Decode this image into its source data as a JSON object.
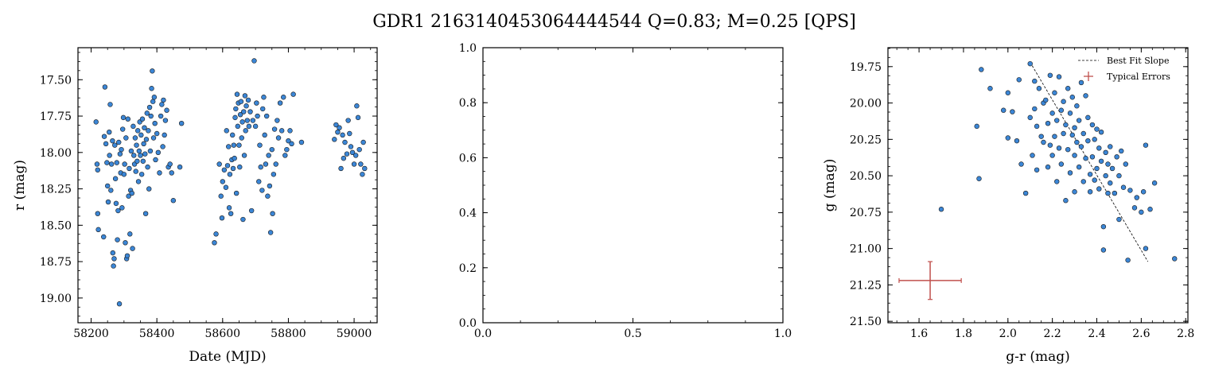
{
  "figure": {
    "title": "GDR1 2163140453064444544  Q=0.83; M=0.25 [QPS]"
  },
  "colors": {
    "point_fill": "#3b86d6",
    "point_edge": "#1a1a1a",
    "error_bar": "#c0504d",
    "fit_line": "#000000"
  },
  "chart_data": [
    {
      "type": "scatter",
      "name": "light-curve",
      "xlabel": "Date (MJD)",
      "ylabel": "r (mag)",
      "xlim": [
        58160,
        59070
      ],
      "ylim": [
        19.17,
        17.28
      ],
      "y_inverted": true,
      "xticks": [
        58200,
        58400,
        58600,
        58800,
        59000
      ],
      "xtick_labels": [
        "58200",
        "58400",
        "58600",
        "58800",
        "59000"
      ],
      "yticks": [
        17.5,
        17.75,
        18.0,
        18.25,
        18.5,
        18.75,
        19.0
      ],
      "ytick_labels": [
        "17.50",
        "17.75",
        "18.00",
        "18.25",
        "18.50",
        "18.75",
        "19.00"
      ],
      "points": [
        [
          58215,
          17.79
        ],
        [
          58218,
          18.08
        ],
        [
          58220,
          18.12
        ],
        [
          58220,
          18.42
        ],
        [
          58222,
          18.53
        ],
        [
          58238,
          18.58
        ],
        [
          58240,
          17.89
        ],
        [
          58242,
          17.55
        ],
        [
          58245,
          17.94
        ],
        [
          58248,
          18.07
        ],
        [
          58250,
          18.23
        ],
        [
          58252,
          18.34
        ],
        [
          58255,
          17.86
        ],
        [
          58256,
          18.02
        ],
        [
          58258,
          17.67
        ],
        [
          58260,
          18.26
        ],
        [
          58262,
          18.08
        ],
        [
          58265,
          17.92
        ],
        [
          58266,
          18.69
        ],
        [
          58268,
          18.78
        ],
        [
          58270,
          18.73
        ],
        [
          58272,
          17.95
        ],
        [
          58274,
          18.18
        ],
        [
          58276,
          18.35
        ],
        [
          58278,
          18.07
        ],
        [
          58280,
          18.6
        ],
        [
          58282,
          18.4
        ],
        [
          58284,
          17.93
        ],
        [
          58286,
          19.04
        ],
        [
          58288,
          18.01
        ],
        [
          58290,
          18.14
        ],
        [
          58292,
          17.98
        ],
        [
          58294,
          18.38
        ],
        [
          58296,
          17.84
        ],
        [
          58298,
          17.76
        ],
        [
          58300,
          18.15
        ],
        [
          58302,
          18.08
        ],
        [
          58304,
          18.62
        ],
        [
          58306,
          17.9
        ],
        [
          58308,
          18.73
        ],
        [
          58310,
          18.71
        ],
        [
          58312,
          17.77
        ],
        [
          58314,
          18.3
        ],
        [
          58316,
          18.11
        ],
        [
          58318,
          18.56
        ],
        [
          58320,
          18.26
        ],
        [
          58322,
          17.99
        ],
        [
          58324,
          18.28
        ],
        [
          58326,
          18.66
        ],
        [
          58328,
          17.82
        ],
        [
          58330,
          18.02
        ],
        [
          58332,
          18.08
        ],
        [
          58334,
          17.9
        ],
        [
          58336,
          18.13
        ],
        [
          58338,
          17.95
        ],
        [
          58340,
          18.06
        ],
        [
          58342,
          17.85
        ],
        [
          58344,
          18.2
        ],
        [
          58346,
          17.99
        ],
        [
          58348,
          17.79
        ],
        [
          58350,
          18.02
        ],
        [
          58352,
          17.88
        ],
        [
          58354,
          18.15
        ],
        [
          58356,
          17.77
        ],
        [
          58358,
          18.06
        ],
        [
          58360,
          17.94
        ],
        [
          58362,
          17.83
        ],
        [
          58364,
          18.01
        ],
        [
          58366,
          18.42
        ],
        [
          58368,
          17.91
        ],
        [
          58370,
          17.73
        ],
        [
          58372,
          18.1
        ],
        [
          58374,
          17.85
        ],
        [
          58376,
          18.25
        ],
        [
          58378,
          17.69
        ],
        [
          58380,
          17.99
        ],
        [
          58382,
          17.75
        ],
        [
          58384,
          17.56
        ],
        [
          58386,
          17.44
        ],
        [
          58388,
          17.65
        ],
        [
          58390,
          17.9
        ],
        [
          58392,
          17.62
        ],
        [
          58394,
          17.8
        ],
        [
          58396,
          18.05
        ],
        [
          58400,
          17.87
        ],
        [
          58404,
          18.0
        ],
        [
          58408,
          18.14
        ],
        [
          58412,
          17.75
        ],
        [
          58415,
          17.67
        ],
        [
          58418,
          17.96
        ],
        [
          58420,
          17.64
        ],
        [
          58423,
          17.88
        ],
        [
          58426,
          17.78
        ],
        [
          58430,
          17.71
        ],
        [
          58435,
          18.1
        ],
        [
          58440,
          18.08
        ],
        [
          58445,
          18.14
        ],
        [
          58450,
          18.33
        ],
        [
          58470,
          18.1
        ],
        [
          58475,
          17.8
        ],
        [
          58575,
          18.62
        ],
        [
          58580,
          18.56
        ],
        [
          58590,
          18.08
        ],
        [
          58595,
          18.3
        ],
        [
          58598,
          18.45
        ],
        [
          58600,
          18.2
        ],
        [
          58605,
          18.12
        ],
        [
          58610,
          18.24
        ],
        [
          58612,
          17.85
        ],
        [
          58615,
          18.09
        ],
        [
          58618,
          17.96
        ],
        [
          58620,
          18.38
        ],
        [
          58622,
          18.15
        ],
        [
          58625,
          18.42
        ],
        [
          58628,
          18.05
        ],
        [
          58630,
          17.88
        ],
        [
          58632,
          18.11
        ],
        [
          58634,
          17.95
        ],
        [
          58636,
          18.04
        ],
        [
          58638,
          17.76
        ],
        [
          58640,
          17.7
        ],
        [
          58642,
          18.28
        ],
        [
          58644,
          17.6
        ],
        [
          58646,
          17.82
        ],
        [
          58648,
          17.66
        ],
        [
          58650,
          17.95
        ],
        [
          58652,
          18.1
        ],
        [
          58654,
          17.74
        ],
        [
          58656,
          17.65
        ],
        [
          58658,
          17.9
        ],
        [
          58660,
          17.79
        ],
        [
          58662,
          18.46
        ],
        [
          58664,
          17.72
        ],
        [
          58666,
          18.02
        ],
        [
          58668,
          17.61
        ],
        [
          58670,
          17.85
        ],
        [
          58672,
          17.68
        ],
        [
          58675,
          17.78
        ],
        [
          58678,
          17.64
        ],
        [
          58680,
          17.82
        ],
        [
          58684,
          17.72
        ],
        [
          58688,
          18.4
        ],
        [
          58692,
          17.78
        ],
        [
          58696,
          17.37
        ],
        [
          58700,
          17.82
        ],
        [
          58703,
          17.66
        ],
        [
          58706,
          17.75
        ],
        [
          58710,
          18.2
        ],
        [
          58713,
          17.95
        ],
        [
          58716,
          18.1
        ],
        [
          58720,
          18.26
        ],
        [
          58722,
          17.7
        ],
        [
          58725,
          17.62
        ],
        [
          58728,
          17.88
        ],
        [
          58731,
          18.08
        ],
        [
          58734,
          17.75
        ],
        [
          58737,
          18.3
        ],
        [
          58740,
          18.02
        ],
        [
          58743,
          18.23
        ],
        [
          58746,
          18.55
        ],
        [
          58750,
          17.98
        ],
        [
          58752,
          18.42
        ],
        [
          58755,
          18.15
        ],
        [
          58758,
          17.84
        ],
        [
          58762,
          18.08
        ],
        [
          58766,
          17.78
        ],
        [
          58770,
          17.9
        ],
        [
          58775,
          17.66
        ],
        [
          58780,
          17.85
        ],
        [
          58785,
          17.62
        ],
        [
          58790,
          18.02
        ],
        [
          58795,
          17.98
        ],
        [
          58800,
          17.92
        ],
        [
          58805,
          17.85
        ],
        [
          58810,
          17.94
        ],
        [
          58815,
          17.6
        ],
        [
          58840,
          17.93
        ],
        [
          58940,
          17.91
        ],
        [
          58945,
          17.81
        ],
        [
          58950,
          17.86
        ],
        [
          58955,
          17.83
        ],
        [
          58960,
          18.11
        ],
        [
          58965,
          17.88
        ],
        [
          58968,
          18.04
        ],
        [
          58972,
          17.93
        ],
        [
          58978,
          18.01
        ],
        [
          58982,
          17.78
        ],
        [
          58986,
          17.87
        ],
        [
          58990,
          17.96
        ],
        [
          58995,
          18.0
        ],
        [
          59000,
          18.08
        ],
        [
          59005,
          18.02
        ],
        [
          59008,
          17.68
        ],
        [
          59012,
          17.76
        ],
        [
          59016,
          17.98
        ],
        [
          59020,
          18.08
        ],
        [
          59025,
          18.15
        ],
        [
          59028,
          17.93
        ],
        [
          59032,
          18.11
        ]
      ]
    },
    {
      "type": "scatter",
      "name": "empty-axes",
      "xlabel": "",
      "ylabel": "",
      "xlim": [
        0.0,
        1.0
      ],
      "ylim": [
        0.0,
        1.0
      ],
      "xticks": [
        0.0,
        0.5,
        1.0
      ],
      "xtick_labels": [
        "0.0",
        "0.5",
        "1.0"
      ],
      "yticks": [
        0.0,
        0.2,
        0.4,
        0.6,
        0.8,
        1.0
      ],
      "ytick_labels": [
        "0.0",
        "0.2",
        "0.4",
        "0.6",
        "0.8",
        "1.0"
      ],
      "points": []
    },
    {
      "type": "scatter",
      "name": "color-magnitude",
      "xlabel": "g-r (mag)",
      "ylabel": "g (mag)",
      "xlim": [
        1.46,
        2.81
      ],
      "ylim": [
        21.51,
        19.62
      ],
      "y_inverted": true,
      "xticks": [
        1.6,
        1.8,
        2.0,
        2.2,
        2.4,
        2.6,
        2.8
      ],
      "xtick_labels": [
        "1.6",
        "1.8",
        "2.0",
        "2.2",
        "2.4",
        "2.6",
        "2.8"
      ],
      "yticks": [
        19.75,
        20.0,
        20.25,
        20.5,
        20.75,
        21.0,
        21.25,
        21.5
      ],
      "ytick_labels": [
        "19.75",
        "20.00",
        "20.25",
        "20.50",
        "20.75",
        "21.00",
        "21.25",
        "21.50"
      ],
      "legend": {
        "location": "top-right",
        "entries": [
          "Best Fit Slope",
          "Typical Errors"
        ]
      },
      "fit_line": {
        "x": [
          2.1,
          2.63
        ],
        "y": [
          19.72,
          21.09
        ]
      },
      "typical_error": {
        "x": 1.65,
        "y": 21.22,
        "xerr": 0.14,
        "yerr": 0.13
      },
      "points": [
        [
          1.7,
          20.73
        ],
        [
          1.86,
          20.16
        ],
        [
          1.87,
          20.52
        ],
        [
          1.88,
          19.77
        ],
        [
          1.92,
          19.9
        ],
        [
          1.98,
          20.05
        ],
        [
          2.0,
          19.93
        ],
        [
          2.0,
          20.24
        ],
        [
          2.02,
          20.06
        ],
        [
          2.04,
          20.26
        ],
        [
          2.05,
          19.84
        ],
        [
          2.06,
          20.42
        ],
        [
          2.08,
          20.62
        ],
        [
          2.1,
          19.73
        ],
        [
          2.1,
          20.1
        ],
        [
          2.11,
          20.36
        ],
        [
          2.12,
          19.85
        ],
        [
          2.12,
          20.04
        ],
        [
          2.13,
          20.46
        ],
        [
          2.13,
          20.16
        ],
        [
          2.14,
          19.9
        ],
        [
          2.15,
          20.23
        ],
        [
          2.16,
          20.0
        ],
        [
          2.16,
          20.27
        ],
        [
          2.17,
          19.98
        ],
        [
          2.18,
          20.14
        ],
        [
          2.18,
          20.44
        ],
        [
          2.19,
          19.81
        ],
        [
          2.19,
          20.29
        ],
        [
          2.2,
          20.07
        ],
        [
          2.2,
          20.36
        ],
        [
          2.21,
          19.93
        ],
        [
          2.21,
          20.23
        ],
        [
          2.22,
          20.54
        ],
        [
          2.22,
          20.12
        ],
        [
          2.23,
          19.82
        ],
        [
          2.23,
          20.31
        ],
        [
          2.24,
          20.05
        ],
        [
          2.24,
          20.42
        ],
        [
          2.25,
          19.99
        ],
        [
          2.25,
          20.21
        ],
        [
          2.26,
          20.15
        ],
        [
          2.26,
          20.67
        ],
        [
          2.27,
          19.9
        ],
        [
          2.27,
          20.32
        ],
        [
          2.28,
          20.07
        ],
        [
          2.28,
          20.48
        ],
        [
          2.29,
          20.22
        ],
        [
          2.29,
          19.96
        ],
        [
          2.3,
          20.17
        ],
        [
          2.3,
          20.36
        ],
        [
          2.3,
          20.61
        ],
        [
          2.31,
          20.27
        ],
        [
          2.31,
          20.02
        ],
        [
          2.32,
          20.44
        ],
        [
          2.32,
          20.12
        ],
        [
          2.33,
          19.86
        ],
        [
          2.33,
          20.3
        ],
        [
          2.34,
          20.21
        ],
        [
          2.34,
          20.54
        ],
        [
          2.35,
          19.95
        ],
        [
          2.35,
          20.38
        ],
        [
          2.36,
          20.1
        ],
        [
          2.36,
          20.26
        ],
        [
          2.37,
          20.49
        ],
        [
          2.37,
          20.61
        ],
        [
          2.38,
          20.15
        ],
        [
          2.38,
          20.37
        ],
        [
          2.39,
          20.25
        ],
        [
          2.39,
          20.53
        ],
        [
          2.4,
          20.45
        ],
        [
          2.4,
          20.18
        ],
        [
          2.41,
          20.31
        ],
        [
          2.41,
          20.59
        ],
        [
          2.42,
          20.4
        ],
        [
          2.42,
          20.2
        ],
        [
          2.43,
          20.85
        ],
        [
          2.43,
          21.01
        ],
        [
          2.44,
          20.5
        ],
        [
          2.44,
          20.34
        ],
        [
          2.45,
          20.62
        ],
        [
          2.45,
          20.42
        ],
        [
          2.46,
          20.55
        ],
        [
          2.46,
          20.3
        ],
        [
          2.47,
          20.45
        ],
        [
          2.48,
          20.62
        ],
        [
          2.49,
          20.37
        ],
        [
          2.5,
          20.8
        ],
        [
          2.5,
          20.5
        ],
        [
          2.51,
          20.33
        ],
        [
          2.52,
          20.58
        ],
        [
          2.53,
          20.42
        ],
        [
          2.54,
          21.08
        ],
        [
          2.55,
          20.6
        ],
        [
          2.57,
          20.72
        ],
        [
          2.58,
          20.65
        ],
        [
          2.6,
          20.75
        ],
        [
          2.61,
          20.61
        ],
        [
          2.62,
          20.29
        ],
        [
          2.62,
          21.0
        ],
        [
          2.64,
          20.73
        ],
        [
          2.66,
          20.55
        ],
        [
          2.75,
          21.07
        ]
      ]
    }
  ]
}
